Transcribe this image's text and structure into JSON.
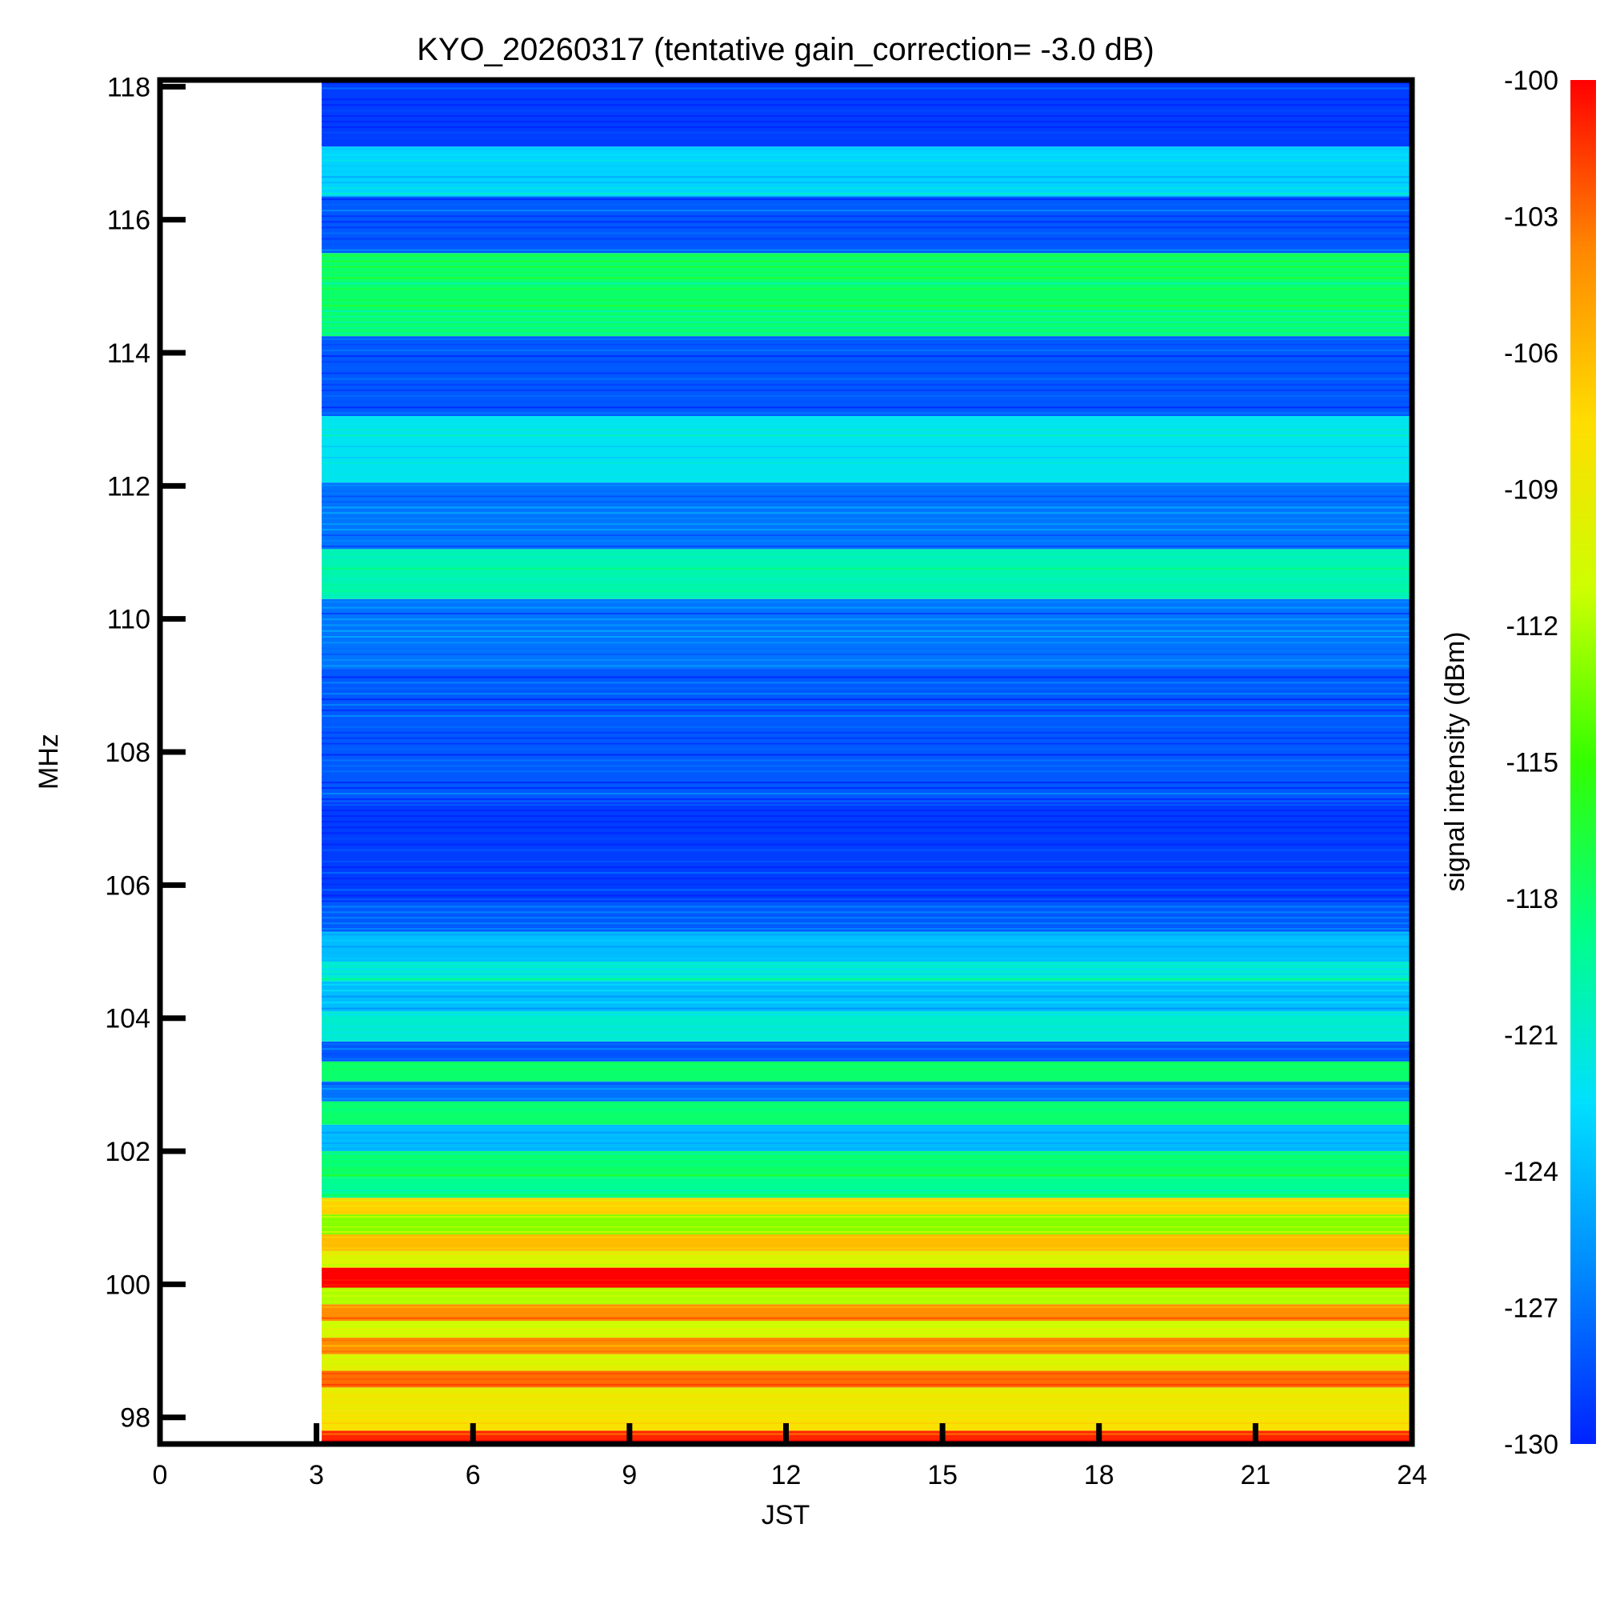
{
  "chart_data": {
    "type": "heatmap",
    "title": "KYO_20260317 (tentative gain_correction= -3.0 dB)",
    "xlabel": "JST",
    "ylabel": "MHz",
    "colorbar_label": "signal intensity (dBm)",
    "xlim": [
      0,
      24
    ],
    "ylim": [
      97.6,
      118.1
    ],
    "x_ticks": [
      0,
      3,
      6,
      9,
      12,
      15,
      18,
      21,
      24
    ],
    "y_ticks": [
      98,
      100,
      102,
      104,
      106,
      108,
      110,
      112,
      114,
      116,
      118
    ],
    "colorbar_range": [
      -130,
      -100
    ],
    "colorbar_ticks": [
      -100,
      -103,
      -106,
      -109,
      -112,
      -115,
      -118,
      -121,
      -124,
      -127,
      -130
    ],
    "data_time_range": [
      3.1,
      24
    ],
    "colormap": [
      "#0022ff",
      "#0088ff",
      "#00e0ff",
      "#00ff88",
      "#33ff00",
      "#ccff00",
      "#ffdd00",
      "#ff8800",
      "#ff0000"
    ],
    "bands": [
      {
        "mhz": 97.7,
        "dbm": -101
      },
      {
        "mhz": 97.9,
        "dbm": -108
      },
      {
        "mhz": 98.3,
        "dbm": -109
      },
      {
        "mhz": 98.6,
        "dbm": -103
      },
      {
        "mhz": 98.8,
        "dbm": -110
      },
      {
        "mhz": 99.1,
        "dbm": -104
      },
      {
        "mhz": 99.3,
        "dbm": -111
      },
      {
        "mhz": 99.6,
        "dbm": -104
      },
      {
        "mhz": 99.8,
        "dbm": -112
      },
      {
        "mhz": 100.1,
        "dbm": -100
      },
      {
        "mhz": 100.4,
        "dbm": -110
      },
      {
        "mhz": 100.6,
        "dbm": -106
      },
      {
        "mhz": 100.9,
        "dbm": -113
      },
      {
        "mhz": 101.2,
        "dbm": -107
      },
      {
        "mhz": 101.4,
        "dbm": -119
      },
      {
        "mhz": 101.8,
        "dbm": -118
      },
      {
        "mhz": 102.2,
        "dbm": -124
      },
      {
        "mhz": 102.6,
        "dbm": -118
      },
      {
        "mhz": 102.9,
        "dbm": -127
      },
      {
        "mhz": 103.2,
        "dbm": -118
      },
      {
        "mhz": 103.5,
        "dbm": -128
      },
      {
        "mhz": 103.8,
        "dbm": -121
      },
      {
        "mhz": 104.4,
        "dbm": -124
      },
      {
        "mhz": 104.7,
        "dbm": -121
      },
      {
        "mhz": 105.0,
        "dbm": -124
      },
      {
        "mhz": 105.6,
        "dbm": -128
      },
      {
        "mhz": 106.0,
        "dbm": -129
      },
      {
        "mhz": 108.5,
        "dbm": -128
      },
      {
        "mhz": 110.0,
        "dbm": -127
      },
      {
        "mhz": 110.6,
        "dbm": -120
      },
      {
        "mhz": 111.5,
        "dbm": -127
      },
      {
        "mhz": 112.6,
        "dbm": -122
      },
      {
        "mhz": 113.5,
        "dbm": -128
      },
      {
        "mhz": 115.0,
        "dbm": -118
      },
      {
        "mhz": 116.0,
        "dbm": -128
      },
      {
        "mhz": 116.7,
        "dbm": -123
      },
      {
        "mhz": 117.5,
        "dbm": -129
      }
    ]
  }
}
